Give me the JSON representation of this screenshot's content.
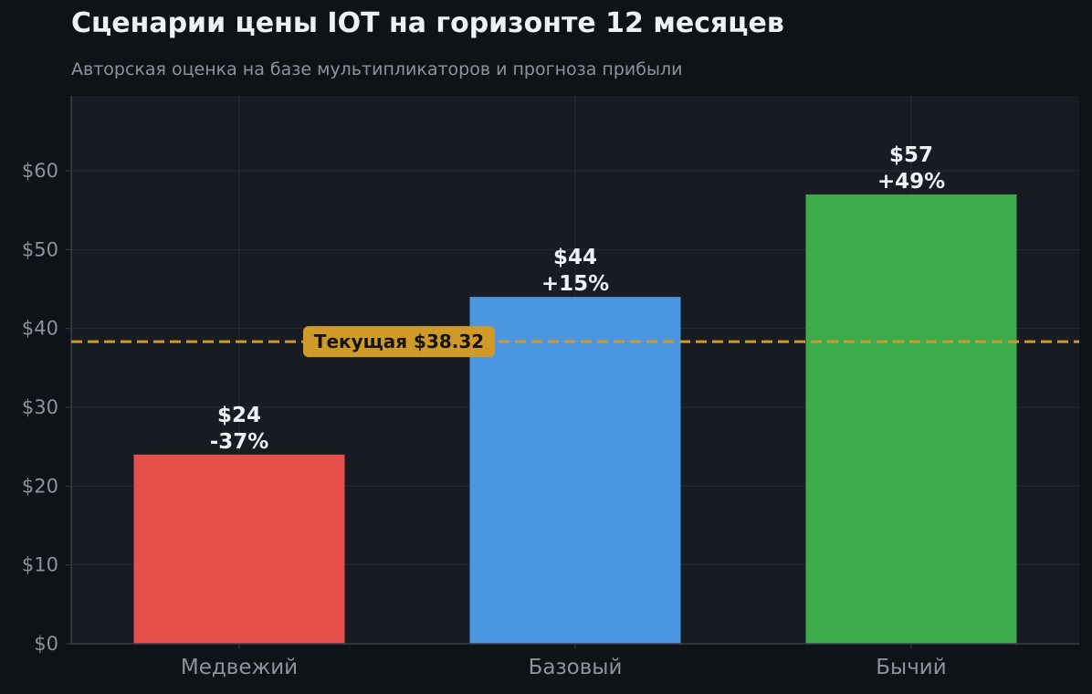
{
  "title": "Сценарии цены IOT на горизонте 12 месяцев",
  "subtitle": "Авторская оценка на базе мультипликаторов и прогноза прибыли",
  "colors": {
    "background": "#0f1317",
    "plot_background": "#181b22",
    "grid": "#262a33",
    "axis_text": "#8d939c",
    "bar_label": "#eef1f5",
    "current_line": "#d09a28",
    "current_label_bg": "#d09a28",
    "current_label_text": "#16130b"
  },
  "chart_data": {
    "type": "bar",
    "categories": [
      "Медвежий",
      "Базовый",
      "Бычий"
    ],
    "values": [
      24,
      44,
      57
    ],
    "value_labels": [
      "$24",
      "$44",
      "$57"
    ],
    "change_labels": [
      "-37%",
      "+15%",
      "+49%"
    ],
    "bar_colors": [
      "#e64f49",
      "#4a96e0",
      "#3bab4c"
    ],
    "ylim": [
      0,
      69.5
    ],
    "yticks": [
      0,
      10,
      20,
      30,
      40,
      50,
      60
    ],
    "ytick_labels": [
      "$0",
      "$10",
      "$20",
      "$30",
      "$40",
      "$50",
      "$60"
    ],
    "grid": true,
    "reference_line": {
      "value": 38.32,
      "label": "Текущая $38.32",
      "style": "dashed"
    }
  }
}
